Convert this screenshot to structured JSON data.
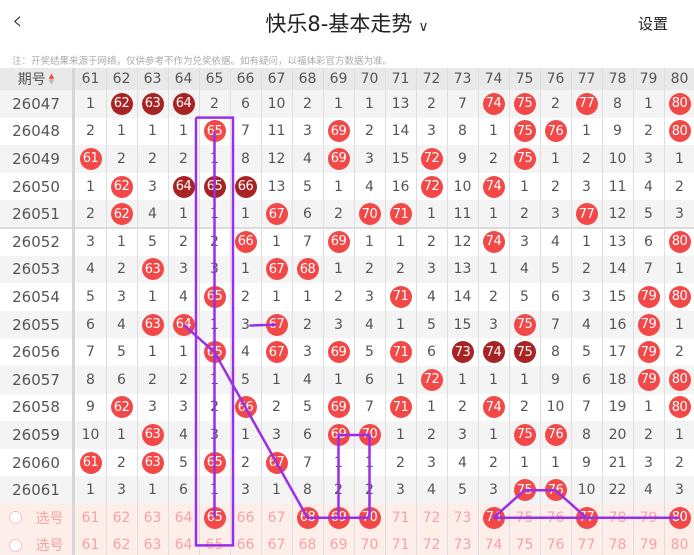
{
  "header": {
    "back_icon": "chevron-left-icon",
    "title": "快乐8-基本走势",
    "dropdown_icon": "chevron-down-icon",
    "settings_label": "设置"
  },
  "note": "注：开奖结果来源于网络，仅供参考不作为兑奖依据。如有疑问，以福体彩官方数据为准。",
  "table": {
    "period_header": "期号",
    "sort_icon": "sort-arrows-icon",
    "columns": [
      "61",
      "62",
      "63",
      "64",
      "65",
      "66",
      "67",
      "68",
      "69",
      "70",
      "71",
      "72",
      "73",
      "74",
      "75",
      "76",
      "77",
      "78",
      "79",
      "80"
    ],
    "colors": {
      "ball": "#f24848",
      "ball_repeat": "#a82424",
      "line": "#9b2ee8"
    },
    "rows": [
      {
        "period": "26047",
        "values": [
          "1",
          "62",
          "63",
          "64",
          "2",
          "6",
          "10",
          "2",
          "1",
          "1",
          "13",
          "2",
          "7",
          "74",
          "75",
          "2",
          "77",
          "8",
          "1",
          "80"
        ],
        "dark": [
          "62",
          "63",
          "64"
        ]
      },
      {
        "period": "26048",
        "values": [
          "2",
          "1",
          "1",
          "1",
          "65",
          "7",
          "11",
          "3",
          "69",
          "2",
          "14",
          "3",
          "8",
          "1",
          "75",
          "76",
          "1",
          "9",
          "2",
          "80"
        ],
        "dark": []
      },
      {
        "period": "26049",
        "values": [
          "61",
          "2",
          "2",
          "2",
          "1",
          "8",
          "12",
          "4",
          "69",
          "3",
          "15",
          "72",
          "9",
          "2",
          "75",
          "1",
          "2",
          "10",
          "3",
          "1"
        ],
        "dark": []
      },
      {
        "period": "26050",
        "values": [
          "1",
          "62",
          "3",
          "64",
          "65",
          "66",
          "13",
          "5",
          "1",
          "4",
          "16",
          "72",
          "10",
          "74",
          "1",
          "2",
          "3",
          "11",
          "4",
          "2"
        ],
        "dark": [
          "64",
          "65",
          "66"
        ]
      },
      {
        "period": "26051",
        "values": [
          "2",
          "62",
          "4",
          "1",
          "1",
          "1",
          "67",
          "6",
          "2",
          "70",
          "71",
          "1",
          "11",
          "1",
          "2",
          "3",
          "77",
          "12",
          "5",
          "3"
        ],
        "dark": []
      },
      {
        "period": "26052",
        "values": [
          "3",
          "1",
          "5",
          "2",
          "2",
          "66",
          "1",
          "7",
          "69",
          "1",
          "1",
          "2",
          "12",
          "74",
          "3",
          "4",
          "1",
          "13",
          "6",
          "80"
        ],
        "dark": []
      },
      {
        "period": "26053",
        "values": [
          "4",
          "2",
          "63",
          "3",
          "3",
          "1",
          "67",
          "68",
          "1",
          "2",
          "2",
          "3",
          "13",
          "1",
          "4",
          "5",
          "2",
          "14",
          "7",
          "1"
        ],
        "dark": []
      },
      {
        "period": "26054",
        "values": [
          "5",
          "3",
          "1",
          "4",
          "65",
          "2",
          "1",
          "1",
          "2",
          "3",
          "71",
          "4",
          "14",
          "2",
          "5",
          "6",
          "3",
          "15",
          "79",
          "80"
        ],
        "dark": []
      },
      {
        "period": "26055",
        "values": [
          "6",
          "4",
          "63",
          "64",
          "1",
          "3",
          "67",
          "2",
          "3",
          "4",
          "1",
          "5",
          "15",
          "3",
          "75",
          "7",
          "4",
          "16",
          "79",
          "1"
        ],
        "dark": []
      },
      {
        "period": "26056",
        "values": [
          "7",
          "5",
          "1",
          "1",
          "65",
          "4",
          "67",
          "3",
          "69",
          "5",
          "71",
          "6",
          "73",
          "74",
          "75",
          "8",
          "5",
          "17",
          "79",
          "2"
        ],
        "dark": [
          "73",
          "74",
          "75"
        ]
      },
      {
        "period": "26057",
        "values": [
          "8",
          "6",
          "2",
          "2",
          "1",
          "5",
          "1",
          "4",
          "1",
          "6",
          "1",
          "72",
          "1",
          "1",
          "1",
          "9",
          "6",
          "18",
          "79",
          "80"
        ],
        "dark": []
      },
      {
        "period": "26058",
        "values": [
          "9",
          "62",
          "3",
          "3",
          "2",
          "66",
          "2",
          "5",
          "69",
          "7",
          "71",
          "1",
          "2",
          "74",
          "2",
          "10",
          "7",
          "19",
          "1",
          "80"
        ],
        "dark": []
      },
      {
        "period": "26059",
        "values": [
          "10",
          "1",
          "63",
          "4",
          "3",
          "1",
          "3",
          "6",
          "69",
          "70",
          "1",
          "2",
          "3",
          "1",
          "75",
          "76",
          "8",
          "20",
          "2",
          "1"
        ],
        "dark": []
      },
      {
        "period": "26060",
        "values": [
          "61",
          "2",
          "63",
          "5",
          "65",
          "2",
          "67",
          "7",
          "1",
          "1",
          "2",
          "3",
          "4",
          "2",
          "1",
          "1",
          "9",
          "21",
          "3",
          "2"
        ],
        "dark": []
      },
      {
        "period": "26061",
        "values": [
          "1",
          "3",
          "1",
          "6",
          "1",
          "3",
          "1",
          "8",
          "2",
          "2",
          "3",
          "4",
          "5",
          "3",
          "75",
          "76",
          "10",
          "22",
          "4",
          "3"
        ],
        "dark": []
      }
    ],
    "select_rows": [
      {
        "label": "选号",
        "selected": [
          "65",
          "68",
          "69",
          "70",
          "74",
          "77",
          "80"
        ]
      },
      {
        "label": "选号",
        "selected": []
      }
    ]
  }
}
